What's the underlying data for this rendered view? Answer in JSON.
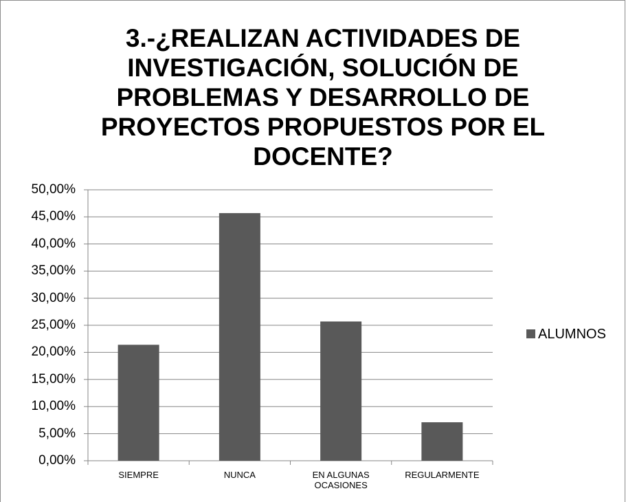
{
  "chart_data": {
    "type": "bar",
    "title": "3.-¿REALIZAN  ACTIVIDADES  DE INVESTIGACIÓN, SOLUCIÓN DE PROBLEMAS  Y DESARROLLO DE PROYECTOS PROPUESTOS  POR EL DOCENTE?",
    "categories": [
      "SIEMPRE",
      "NUNCA",
      "EN ALGUNAS OCASIONES",
      "REGULARMENTE"
    ],
    "series": [
      {
        "name": "ALUMNOS",
        "color": "#595959",
        "values": [
          21.4,
          45.7,
          25.7,
          7.1
        ]
      }
    ],
    "ylim": [
      0,
      50
    ],
    "yticks": [
      {
        "value": 0,
        "label": "0,00%"
      },
      {
        "value": 5,
        "label": "5,00%"
      },
      {
        "value": 10,
        "label": "10,00%"
      },
      {
        "value": 15,
        "label": "15,00%"
      },
      {
        "value": 20,
        "label": "20,00%"
      },
      {
        "value": 25,
        "label": "25,00%"
      },
      {
        "value": 30,
        "label": "30,00%"
      },
      {
        "value": 35,
        "label": "35,00%"
      },
      {
        "value": 40,
        "label": "40,00%"
      },
      {
        "value": 45,
        "label": "45,00%"
      },
      {
        "value": 50,
        "label": "50,00%"
      }
    ],
    "grid": true,
    "legend": "right"
  }
}
